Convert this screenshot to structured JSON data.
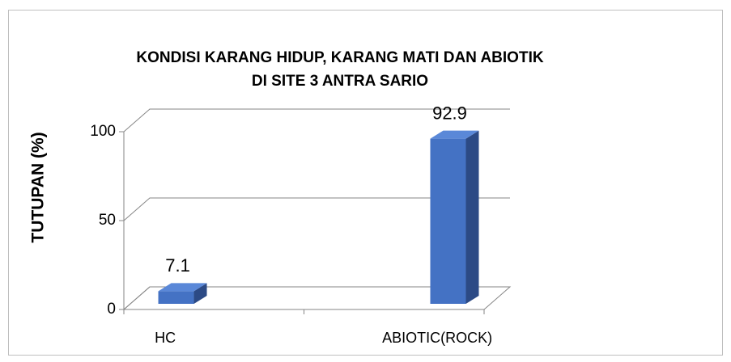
{
  "chart_data": {
    "type": "bar3d",
    "title": [
      "KONDISI KARANG HIDUP, KARANG MATI DAN ABIOTIK",
      "DI SITE 3 ANTRA SARIO"
    ],
    "y_label": "TUTUPAN (%)",
    "categories": [
      "HC",
      "ABIOTIC(ROCK)"
    ],
    "values": [
      7.1,
      92.9
    ],
    "color": "#4472c4",
    "ylim": [
      0,
      100
    ],
    "yticks": [
      0,
      50,
      100
    ],
    "grid": true
  }
}
